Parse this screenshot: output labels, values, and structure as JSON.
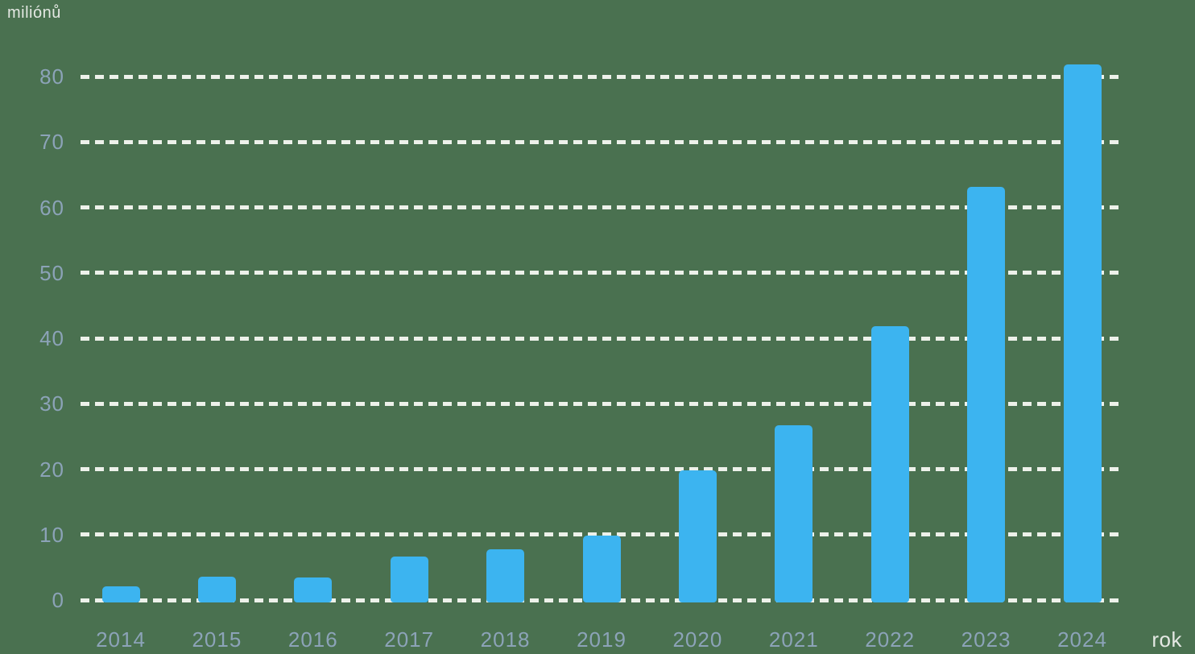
{
  "chart_data": {
    "type": "bar",
    "title": "",
    "ylabel": "miliónů",
    "xlabel": "rok",
    "categories": [
      "2014",
      "2015",
      "2016",
      "2017",
      "2018",
      "2019",
      "2020",
      "2021",
      "2022",
      "2023",
      "2024"
    ],
    "values": [
      2.1,
      3.6,
      3.5,
      6.6,
      7.8,
      9.9,
      19.8,
      26.7,
      41.8,
      63.2,
      81.8
    ],
    "yticks": [
      0,
      10,
      20,
      30,
      40,
      50,
      60,
      70,
      80
    ],
    "ylim": [
      0,
      85
    ],
    "grid": "horizontal-dashed",
    "legend": "none",
    "colors": {
      "background": "#4a7150",
      "bar": "#3cb4f0",
      "grid": "#edf1ea",
      "tick_label": "#8ca3b8",
      "axis_title": "#e4e8e3"
    }
  }
}
